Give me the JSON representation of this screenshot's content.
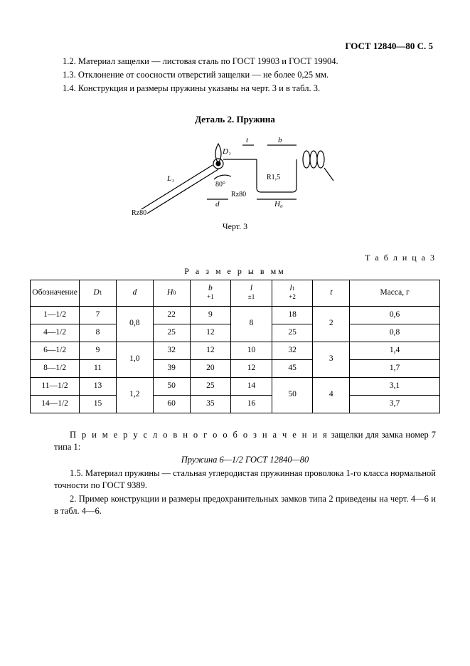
{
  "header": {
    "doc_code": "ГОСТ 12840—80 С. 5"
  },
  "notes": {
    "n1": "1.2. Материал защелки — листовая сталь по ГОСТ 19903 и ГОСТ 19904.",
    "n2": "1.3. Отклонение от соосности отверстий защелки — не более 0,25 мм.",
    "n3": "1.4. Конструкция и размеры пружины указаны на черт. 3 и в табл. 3."
  },
  "detail": {
    "title": "Деталь 2. Пружина",
    "caption": "Черт. 3"
  },
  "figure": {
    "labels": {
      "t": "t",
      "b": "b",
      "D1": "D₁",
      "L1": "L₁",
      "d": "d",
      "H0": "H₀",
      "angle": "80°",
      "R": "R1,5",
      "Ra": "Rz80",
      "Rb": "Rz80"
    },
    "line_color": "#000000",
    "bg": "#ffffff",
    "stroke_w": 1.2
  },
  "table": {
    "label": "Т а б л и ц а  3",
    "heading": "Р а з м е р ы   в мм",
    "columns": {
      "c0": "Обозначение",
      "c1_main": "D",
      "c1_sub": "1",
      "c2": "d",
      "c3_main": "H",
      "c3_sub": "0",
      "c4_main": "b",
      "c4_tol": "+1",
      "c5_main": "l",
      "c5_tol": "±1",
      "c6_main": "l",
      "c6_sub": "1",
      "c6_tol": "+2",
      "c7": "t",
      "c8": "Масса, г"
    },
    "rows": [
      {
        "a": "1—1/2",
        "D1": "7",
        "d": "0,8",
        "H0": "22",
        "b": "9",
        "l": "8",
        "l1": "18",
        "t": "2",
        "m": "0,6",
        "d_span": 2,
        "l_span": 2,
        "t_span": 2
      },
      {
        "a": "4—1/2",
        "D1": "8",
        "H0": "25",
        "b": "12",
        "l1": "25",
        "m": "0,8"
      },
      {
        "a": "6—1/2",
        "D1": "9",
        "d": "1,0",
        "H0": "32",
        "b": "12",
        "l": "10",
        "l1": "32",
        "t": "3",
        "m": "1,4",
        "d_span": 2,
        "t_span": 2
      },
      {
        "a": "8—1/2",
        "D1": "11",
        "H0": "39",
        "b": "20",
        "l": "12",
        "l1": "45",
        "m": "1,7"
      },
      {
        "a": "11—1/2",
        "D1": "13",
        "d": "1,2",
        "H0": "50",
        "b": "25",
        "l": "14",
        "l1": "50",
        "t": "4",
        "m": "3,1",
        "d_span": 2,
        "l1_span": 2,
        "t_span": 2
      },
      {
        "a": "14—1/2",
        "D1": "15",
        "H0": "60",
        "b": "35",
        "l": "16",
        "m": "3,7"
      }
    ]
  },
  "bottom": {
    "p1a": "П р и м е р   у с л о в н о г о   о б о з н а ч е н и я",
    "p1b": "  защелки для замка номер 7 типа 1:",
    "designation": "Пружина 6—1/2 ГОСТ 12840—80",
    "p2": "1.5. Материал пружины — стальная углеродистая пружинная проволока 1-го класса нормальной точности по ГОСТ 9389.",
    "p3": "2. Пример конструкции и размеры предохранительных замков типа 2 приведены на черт. 4—6 и в табл. 4—6."
  }
}
